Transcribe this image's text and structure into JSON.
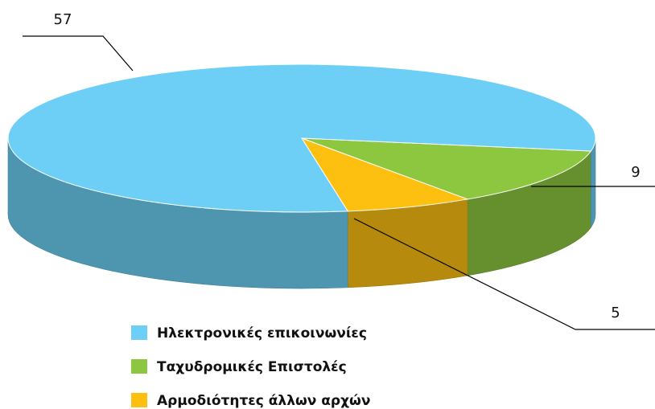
{
  "chart_data": {
    "type": "pie",
    "categories": [
      "Ηλεκτρονικές επικοινωνίες",
      "Ταχυδρομικές Επιστολές",
      "Αρμοδιότητες άλλων αρχών"
    ],
    "values": [
      57,
      9,
      5
    ],
    "colors": [
      "#6dcff5",
      "#8dc63f",
      "#fdc010"
    ],
    "legend": "bottom"
  }
}
